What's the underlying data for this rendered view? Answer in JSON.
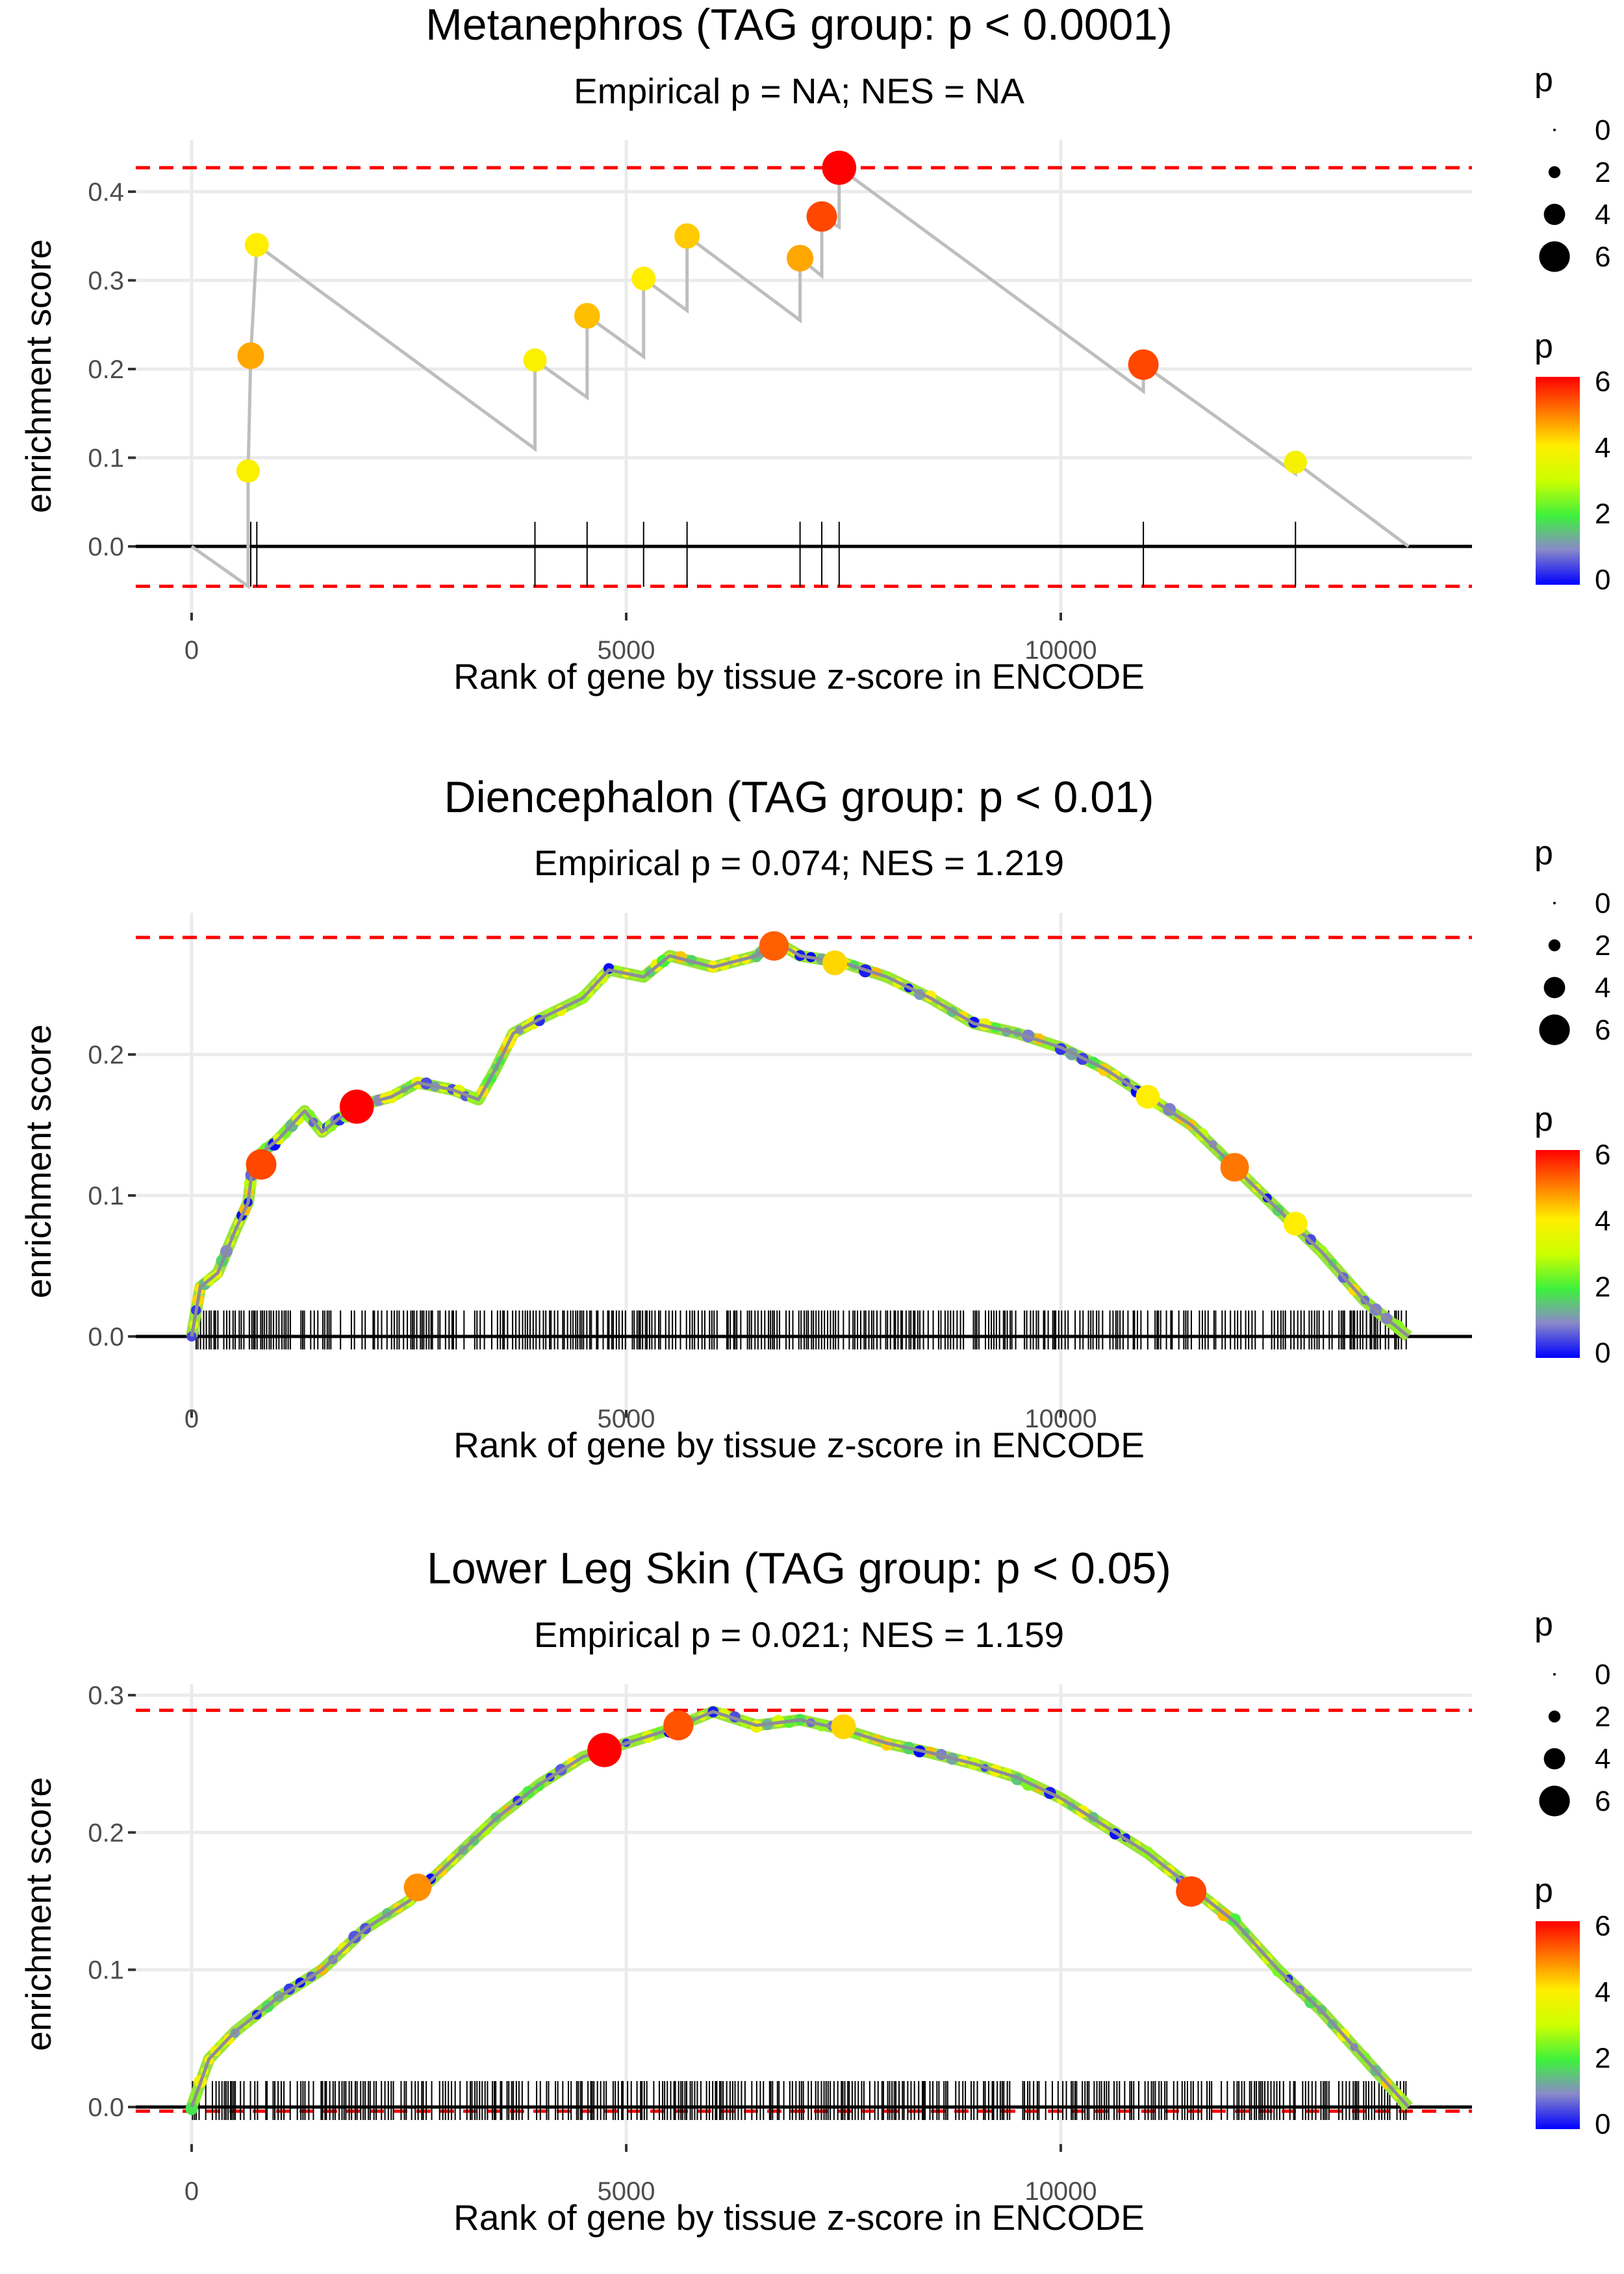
{
  "chart_data": [
    {
      "type": "line",
      "title": "Metanephros (TAG group: p < 0.0001)",
      "subtitle": "Empirical p = NA; NES = NA",
      "xlabel": "Rank of gene by tissue z-score in ENCODE",
      "ylabel": "enrichment score",
      "xlim": [
        -700,
        14700
      ],
      "ylim": [
        -0.055,
        0.44
      ],
      "xticks": [
        "0",
        "5000",
        "10000"
      ],
      "xtick_values": [
        0,
        5000,
        10000
      ],
      "yticks": [
        "0.0",
        "0.1",
        "0.2",
        "0.3",
        "0.4"
      ],
      "ytick_values": [
        0,
        0.1,
        0.2,
        0.3,
        0.4
      ],
      "max_es": 0.427,
      "min_es": -0.045,
      "curve": [
        [
          0,
          0
        ],
        [
          650,
          -0.045
        ],
        [
          650,
          0.085
        ],
        [
          680,
          0.215
        ],
        [
          750,
          0.34
        ],
        [
          3950,
          0.11
        ],
        [
          3950,
          0.21
        ],
        [
          4550,
          0.168
        ],
        [
          4550,
          0.26
        ],
        [
          5200,
          0.214
        ],
        [
          5200,
          0.302
        ],
        [
          5700,
          0.266
        ],
        [
          5700,
          0.35
        ],
        [
          7000,
          0.255
        ],
        [
          7000,
          0.325
        ],
        [
          7250,
          0.305
        ],
        [
          7250,
          0.372
        ],
        [
          7450,
          0.36
        ],
        [
          7450,
          0.427
        ],
        [
          10950,
          0.175
        ],
        [
          10950,
          0.205
        ],
        [
          12700,
          0.082
        ],
        [
          12700,
          0.095
        ],
        [
          14000,
          0
        ]
      ],
      "hits": [
        {
          "x": 650,
          "y": 0.085,
          "p": 3.9
        },
        {
          "x": 680,
          "y": 0.215,
          "p": 4.6
        },
        {
          "x": 750,
          "y": 0.34,
          "p": 4.0
        },
        {
          "x": 3950,
          "y": 0.21,
          "p": 3.9
        },
        {
          "x": 4550,
          "y": 0.26,
          "p": 4.4
        },
        {
          "x": 5200,
          "y": 0.302,
          "p": 4.0
        },
        {
          "x": 5700,
          "y": 0.35,
          "p": 4.3
        },
        {
          "x": 7000,
          "y": 0.325,
          "p": 4.6
        },
        {
          "x": 7250,
          "y": 0.372,
          "p": 5.4
        },
        {
          "x": 7450,
          "y": 0.427,
          "p": 6.2
        },
        {
          "x": 10950,
          "y": 0.205,
          "p": 5.4
        },
        {
          "x": 12700,
          "y": 0.095,
          "p": 3.8
        }
      ],
      "rug": [
        650,
        680,
        750,
        3950,
        4550,
        5200,
        5700,
        7000,
        7250,
        7450,
        10950,
        12700
      ],
      "dense": false
    },
    {
      "type": "line",
      "title": "Diencephalon (TAG group: p < 0.01)",
      "subtitle": "Empirical p = 0.074; NES = 1.219",
      "xlabel": "Rank of gene by tissue z-score in ENCODE",
      "ylabel": "enrichment score",
      "xlim": [
        -700,
        14700
      ],
      "ylim": [
        -0.005,
        0.295
      ],
      "xticks": [
        "0",
        "5000",
        "10000"
      ],
      "xtick_values": [
        0,
        5000,
        10000
      ],
      "yticks": [
        "0.0",
        "0.1",
        "0.2"
      ],
      "ytick_values": [
        0,
        0.1,
        0.2
      ],
      "max_es": 0.283,
      "min_es": 0,
      "curve": [
        [
          0,
          0
        ],
        [
          100,
          0.035
        ],
        [
          300,
          0.045
        ],
        [
          500,
          0.075
        ],
        [
          650,
          0.095
        ],
        [
          700,
          0.12
        ],
        [
          800,
          0.13
        ],
        [
          1000,
          0.14
        ],
        [
          1300,
          0.16
        ],
        [
          1500,
          0.145
        ],
        [
          1700,
          0.155
        ],
        [
          2000,
          0.165
        ],
        [
          2300,
          0.17
        ],
        [
          2600,
          0.18
        ],
        [
          3000,
          0.175
        ],
        [
          3300,
          0.168
        ],
        [
          3500,
          0.19
        ],
        [
          3700,
          0.215
        ],
        [
          4000,
          0.225
        ],
        [
          4500,
          0.24
        ],
        [
          4800,
          0.26
        ],
        [
          5200,
          0.255
        ],
        [
          5500,
          0.27
        ],
        [
          6000,
          0.262
        ],
        [
          6500,
          0.27
        ],
        [
          6700,
          0.281
        ],
        [
          7000,
          0.27
        ],
        [
          7500,
          0.265
        ],
        [
          8000,
          0.255
        ],
        [
          8500,
          0.24
        ],
        [
          9000,
          0.222
        ],
        [
          9500,
          0.215
        ],
        [
          10000,
          0.205
        ],
        [
          10500,
          0.19
        ],
        [
          11000,
          0.17
        ],
        [
          11500,
          0.15
        ],
        [
          12000,
          0.12
        ],
        [
          12500,
          0.09
        ],
        [
          13000,
          0.06
        ],
        [
          13500,
          0.025
        ],
        [
          14000,
          0
        ]
      ],
      "hits": [
        {
          "x": 800,
          "y": 0.122,
          "p": 5.4
        },
        {
          "x": 1900,
          "y": 0.163,
          "p": 6.2
        },
        {
          "x": 6700,
          "y": 0.277,
          "p": 5.2
        },
        {
          "x": 7400,
          "y": 0.265,
          "p": 4.2
        },
        {
          "x": 11000,
          "y": 0.17,
          "p": 4.0
        },
        {
          "x": 12000,
          "y": 0.12,
          "p": 5.0
        },
        {
          "x": 12700,
          "y": 0.08,
          "p": 4.0
        }
      ],
      "dense": true
    },
    {
      "type": "line",
      "title": "Lower Leg Skin (TAG group: p < 0.05)",
      "subtitle": "Empirical p = 0.021; NES = 1.159",
      "xlabel": "Rank of gene by tissue z-score in ENCODE",
      "ylabel": "enrichment score",
      "xlim": [
        -700,
        14700
      ],
      "ylim": [
        -0.005,
        0.305
      ],
      "xticks": [
        "0",
        "5000",
        "10000"
      ],
      "xtick_values": [
        0,
        5000,
        10000
      ],
      "yticks": [
        "0.0",
        "0.1",
        "0.2",
        "0.3"
      ],
      "ytick_values": [
        0,
        0.1,
        0.2,
        0.3
      ],
      "max_es": 0.289,
      "min_es": -0.003,
      "curve": [
        [
          0,
          0
        ],
        [
          200,
          0.035
        ],
        [
          500,
          0.055
        ],
        [
          1000,
          0.08
        ],
        [
          1500,
          0.1
        ],
        [
          2000,
          0.13
        ],
        [
          2500,
          0.15
        ],
        [
          3000,
          0.18
        ],
        [
          3500,
          0.21
        ],
        [
          4000,
          0.235
        ],
        [
          4500,
          0.255
        ],
        [
          5000,
          0.265
        ],
        [
          5500,
          0.275
        ],
        [
          6000,
          0.288
        ],
        [
          6500,
          0.278
        ],
        [
          7000,
          0.282
        ],
        [
          7500,
          0.275
        ],
        [
          8000,
          0.265
        ],
        [
          8500,
          0.258
        ],
        [
          9000,
          0.25
        ],
        [
          9500,
          0.24
        ],
        [
          10000,
          0.225
        ],
        [
          10500,
          0.205
        ],
        [
          11000,
          0.185
        ],
        [
          11500,
          0.16
        ],
        [
          12000,
          0.135
        ],
        [
          12500,
          0.1
        ],
        [
          13000,
          0.07
        ],
        [
          13500,
          0.035
        ],
        [
          14000,
          0
        ]
      ],
      "hits": [
        {
          "x": 2600,
          "y": 0.16,
          "p": 4.8
        },
        {
          "x": 4750,
          "y": 0.26,
          "p": 6.2
        },
        {
          "x": 5600,
          "y": 0.278,
          "p": 5.3
        },
        {
          "x": 7500,
          "y": 0.277,
          "p": 4.2
        },
        {
          "x": 11500,
          "y": 0.157,
          "p": 5.4
        }
      ],
      "dense": true
    }
  ],
  "legend": {
    "size_title": "p",
    "size_labels": [
      "0",
      "2",
      "4",
      "6"
    ],
    "color_title": "p",
    "color_labels": [
      "6",
      "4",
      "2",
      "0"
    ]
  },
  "colors": {
    "dashed": "#ff0000",
    "line": "#bebebe",
    "grid": "#ebebeb"
  }
}
